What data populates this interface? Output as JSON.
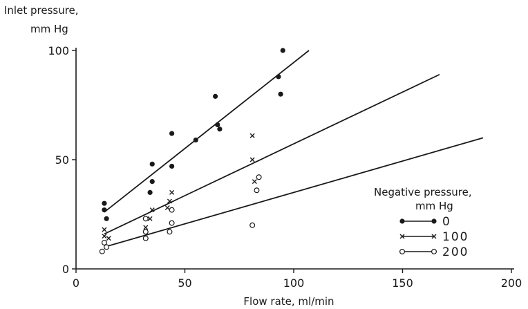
{
  "chart_data": {
    "type": "scatter",
    "ylabel_line1": "Inlet pressure,",
    "ylabel_line2": "mm Hg",
    "xlabel": "Flow rate, ml/min",
    "xlim": [
      0,
      200
    ],
    "ylim": [
      0,
      100
    ],
    "xticks": [
      "0",
      "50",
      "100",
      "150",
      "200"
    ],
    "yticks": [
      "0",
      "50",
      "100"
    ],
    "legend": {
      "title_line1": "Negative pressure,",
      "title_line2": "mm Hg",
      "placement": "right",
      "entries": [
        "0",
        "100",
        "200"
      ]
    },
    "series": [
      {
        "name": "0",
        "marker": "filled-circle",
        "points": [
          [
            13,
            30
          ],
          [
            13,
            27
          ],
          [
            14,
            23
          ],
          [
            34,
            35
          ],
          [
            35,
            48
          ],
          [
            35,
            40
          ],
          [
            44,
            62
          ],
          [
            44,
            47
          ],
          [
            55,
            59
          ],
          [
            64,
            79
          ],
          [
            65,
            66
          ],
          [
            66,
            64
          ],
          [
            93,
            88
          ],
          [
            94,
            80
          ],
          [
            95,
            100
          ]
        ],
        "fit": [
          [
            13,
            26
          ],
          [
            107,
            100
          ]
        ]
      },
      {
        "name": "100",
        "marker": "x",
        "points": [
          [
            13,
            18
          ],
          [
            13,
            15
          ],
          [
            15,
            14
          ],
          [
            32,
            19
          ],
          [
            34,
            23
          ],
          [
            35,
            27
          ],
          [
            42,
            28
          ],
          [
            43,
            31
          ],
          [
            44,
            35
          ],
          [
            81,
            61
          ],
          [
            81,
            50
          ],
          [
            82,
            40
          ]
        ],
        "fit": [
          [
            13,
            16
          ],
          [
            167,
            89
          ]
        ]
      },
      {
        "name": "200",
        "marker": "open-circle",
        "points": [
          [
            12,
            8
          ],
          [
            13,
            12
          ],
          [
            14,
            10
          ],
          [
            32,
            23
          ],
          [
            32,
            17
          ],
          [
            32,
            14
          ],
          [
            43,
            17
          ],
          [
            44,
            21
          ],
          [
            44,
            27
          ],
          [
            81,
            20
          ],
          [
            83,
            36
          ],
          [
            84,
            42
          ]
        ],
        "fit": [
          [
            13,
            10
          ],
          [
            187,
            60
          ]
        ]
      }
    ]
  }
}
